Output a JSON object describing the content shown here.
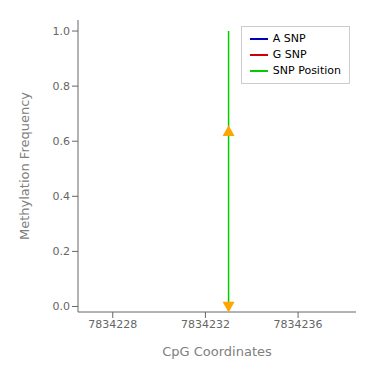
{
  "chart_data": {
    "type": "scatter",
    "xlabel": "CpG Coordinates",
    "ylabel": "Methylation Frequency",
    "xlim": [
      7834226.5,
      7834238.5
    ],
    "xticks": [
      7834228,
      7834232,
      7834236
    ],
    "ylim": [
      -0.02,
      1.04
    ],
    "yticks": [
      {
        "value": 0.0,
        "label": "0.0"
      },
      0.2,
      0.4,
      0.6,
      0.8,
      {
        "value": 1.0,
        "label": "1.0"
      }
    ],
    "legend": "upper right",
    "series": [
      {
        "name": "A SNP",
        "type": "line",
        "color": "#0000BB",
        "x": [],
        "values": []
      },
      {
        "name": "G SNP",
        "type": "line",
        "color": "#CC0000",
        "x": [],
        "values": []
      },
      {
        "name": "SNP Position",
        "type": "line",
        "color": "#00CC00",
        "x": [
          7834233,
          7834233
        ],
        "values": [
          0.0,
          1.0
        ]
      },
      {
        "type": "scatter",
        "color": "#FFA500",
        "marker": "triangle-up",
        "x": [
          7834233
        ],
        "values": [
          0.636
        ]
      },
      {
        "type": "scatter",
        "color": "#FFA500",
        "marker": "triangle-down",
        "x": [
          7834233
        ],
        "values": [
          0.0
        ]
      }
    ]
  }
}
